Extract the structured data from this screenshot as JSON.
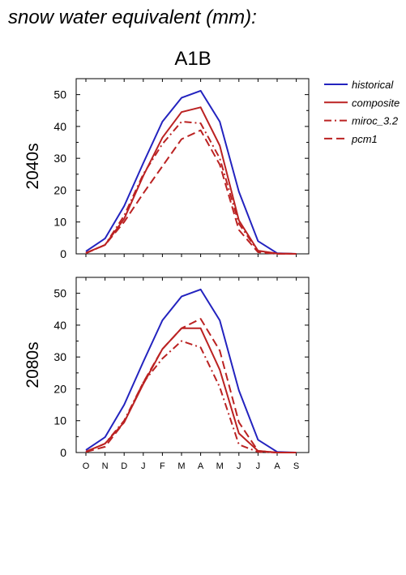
{
  "page_title": "snow water equivalent (mm):",
  "scenario": "A1B",
  "colors": {
    "historical": "#2323bf",
    "projection": "#bb2222"
  },
  "legend": [
    {
      "label": "historical",
      "style": "solid",
      "color": "#2323bf"
    },
    {
      "label": "composite",
      "style": "solid",
      "color": "#bb2222"
    },
    {
      "label": "miroc_3.2",
      "style": "dashdot",
      "color": "#bb2222"
    },
    {
      "label": "pcm1",
      "style": "dashed",
      "color": "#bb2222"
    }
  ],
  "chart_data": [
    {
      "type": "line",
      "title": "2040s",
      "ylim": [
        0,
        55
      ],
      "yticks": [
        0,
        10,
        20,
        30,
        40,
        50
      ],
      "categories": [
        "O",
        "N",
        "D",
        "J",
        "F",
        "M",
        "A",
        "M",
        "J",
        "J",
        "A",
        "S"
      ],
      "show_xticklabels": false,
      "series": [
        {
          "name": "historical",
          "style": "solid",
          "color": "#2323bf",
          "values": [
            0.8,
            4.8,
            15,
            28.5,
            41.5,
            49,
            51.2,
            41.5,
            19.5,
            4,
            0.2,
            0
          ]
        },
        {
          "name": "composite",
          "style": "solid",
          "color": "#bb2222",
          "values": [
            0.3,
            2.8,
            11,
            24.5,
            36.5,
            44.5,
            46,
            34,
            10.5,
            1,
            0.1,
            0
          ]
        },
        {
          "name": "miroc_3.2",
          "style": "dashdot",
          "color": "#bb2222",
          "values": [
            0.2,
            2.8,
            12,
            25,
            34.5,
            41.5,
            41,
            30,
            9.5,
            0.8,
            0.1,
            0
          ]
        },
        {
          "name": "pcm1",
          "style": "dashed",
          "color": "#bb2222",
          "values": [
            0.2,
            2.8,
            10,
            19,
            27.5,
            36,
            38.8,
            28,
            7.5,
            0.5,
            0,
            0
          ]
        }
      ]
    },
    {
      "type": "line",
      "title": "2080s",
      "ylim": [
        0,
        55
      ],
      "yticks": [
        0,
        10,
        20,
        30,
        40,
        50
      ],
      "categories": [
        "O",
        "N",
        "D",
        "J",
        "F",
        "M",
        "A",
        "M",
        "J",
        "J",
        "A",
        "S"
      ],
      "show_xticklabels": true,
      "series": [
        {
          "name": "historical",
          "style": "solid",
          "color": "#2323bf",
          "values": [
            0.8,
            4.8,
            15,
            28.5,
            41.5,
            49,
            51.2,
            41.5,
            19.5,
            4,
            0.2,
            0
          ]
        },
        {
          "name": "composite",
          "style": "solid",
          "color": "#bb2222",
          "values": [
            0.3,
            2.8,
            9.5,
            21.5,
            32.5,
            39,
            39,
            26,
            6,
            0.5,
            0,
            0
          ]
        },
        {
          "name": "miroc_3.2",
          "style": "dashdot",
          "color": "#bb2222",
          "values": [
            0.2,
            2.8,
            10,
            22,
            29.5,
            35,
            33,
            20.5,
            2.5,
            0.2,
            0,
            0
          ]
        },
        {
          "name": "pcm1",
          "style": "dashed",
          "color": "#bb2222",
          "values": [
            0.2,
            1.8,
            9.5,
            22,
            32.5,
            39,
            42,
            32,
            9.5,
            0.5,
            0,
            0
          ]
        }
      ]
    }
  ]
}
